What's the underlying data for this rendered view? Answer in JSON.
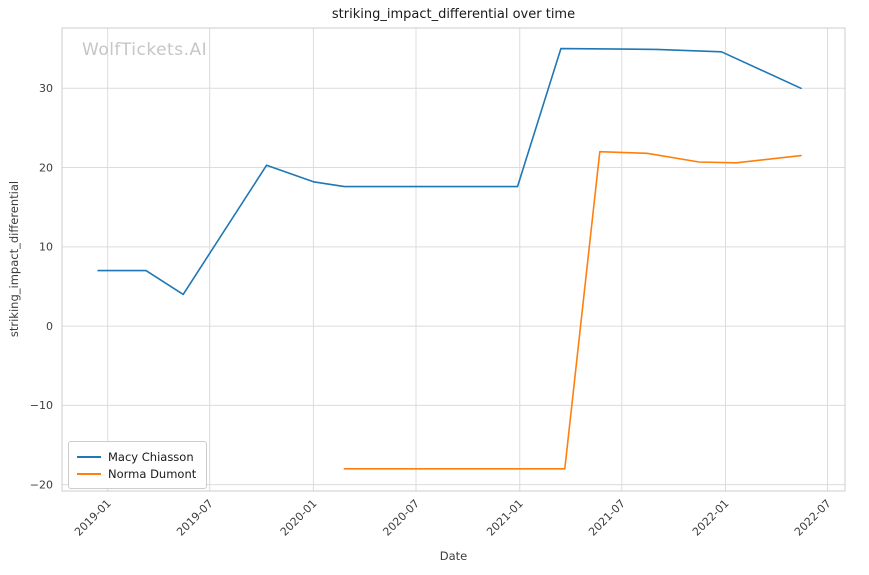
{
  "watermark": "WolfTickets.AI",
  "chart_data": {
    "type": "line",
    "title": "striking_impact_differential over time",
    "xlabel": "Date",
    "ylabel": "striking_impact_differential",
    "grid": true,
    "legend_position": "lower left",
    "xlim": [
      "2018-10-12",
      "2022-08-01"
    ],
    "ylim": [
      -20.8,
      37.6
    ],
    "yticks": [
      -20,
      -10,
      0,
      10,
      20,
      30
    ],
    "xticks": [
      "2019-01",
      "2019-07",
      "2020-01",
      "2020-07",
      "2021-01",
      "2021-07",
      "2022-01",
      "2022-07"
    ],
    "series": [
      {
        "name": "Macy Chiasson",
        "color": "#1f77b4",
        "x": [
          "2018-12-15",
          "2019-03-10",
          "2019-05-15",
          "2019-10-10",
          "2020-01-01",
          "2020-02-25",
          "2020-12-28",
          "2021-03-15",
          "2021-09-01",
          "2021-12-25",
          "2022-05-15"
        ],
        "y": [
          7.0,
          7.0,
          4.0,
          20.3,
          18.2,
          17.6,
          17.6,
          35.0,
          34.9,
          34.6,
          30.0
        ]
      },
      {
        "name": "Norma Dumont",
        "color": "#ff7f0e",
        "x": [
          "2020-02-25",
          "2021-03-22",
          "2021-05-23",
          "2021-08-15",
          "2021-11-15",
          "2022-01-20",
          "2022-05-15"
        ],
        "y": [
          -18.0,
          -18.0,
          22.0,
          21.8,
          20.7,
          20.6,
          21.5
        ]
      }
    ]
  }
}
